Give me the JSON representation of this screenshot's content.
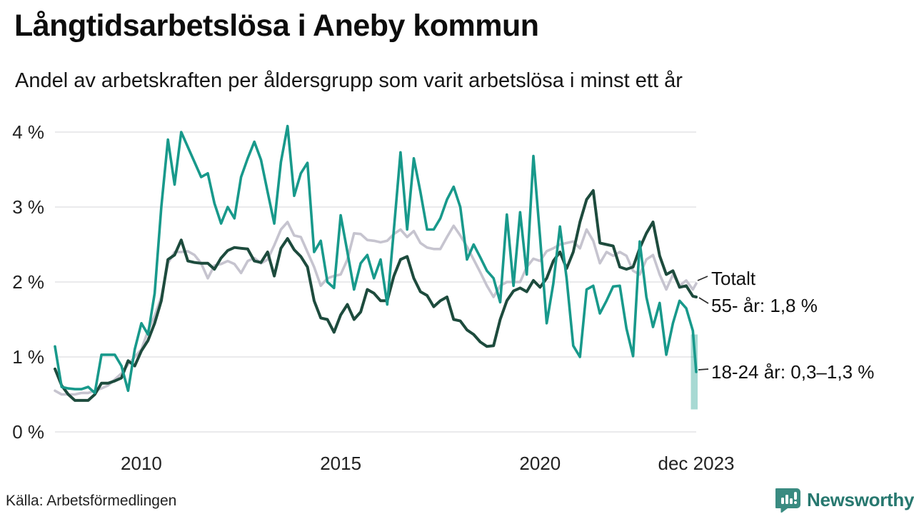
{
  "header": {
    "title": "Långtidsarbetslösa i Aneby kommun",
    "subtitle": "Andel av arbetskraften per åldersgrupp som varit arbetslösa i minst ett år"
  },
  "footer": {
    "source": "Källa: Arbetsförmedlingen",
    "brand": "Newsworthy"
  },
  "colors": {
    "teal_line": "#18998b",
    "dark_green_line": "#1d4b3d",
    "gray_line": "#c6c4cf",
    "gridline": "#e4e4e6",
    "range_band": "rgba(24,154,139,0.38)",
    "connector": "#2a2a2a",
    "brand_teal": "#3a8b81",
    "brand_text": "#27786f"
  },
  "chart_data": {
    "type": "line",
    "title": "Långtidsarbetslösa i Aneby kommun",
    "subtitle": "Andel av arbetskraften per åldersgrupp som varit arbetslösa i minst ett år",
    "unit": "%",
    "grid": "horizontal-only",
    "x_axis": {
      "ticks": [
        {
          "label": "2010",
          "month": 26
        },
        {
          "label": "2015",
          "month": 86
        },
        {
          "label": "2020",
          "month": 146
        },
        {
          "label": "dec 2023",
          "month": 193
        }
      ],
      "x_domain_months": 193,
      "sample_step_months": 2
    },
    "y_axis": {
      "tick_labels": [
        "0 %",
        "1 %",
        "2 %",
        "3 %",
        "4 %"
      ],
      "values": [
        0,
        1,
        2,
        3,
        4
      ],
      "ylim": [
        0,
        4.3
      ]
    },
    "series": [
      {
        "name": "Totalt",
        "end_label": "Totalt",
        "color": "#c6c4cf",
        "values": [
          0.55,
          0.5,
          0.5,
          0.5,
          0.52,
          0.52,
          0.55,
          0.58,
          0.62,
          0.7,
          0.78,
          0.9,
          1.0,
          1.1,
          1.35,
          1.55,
          1.8,
          2.25,
          2.4,
          2.4,
          2.41,
          2.36,
          2.25,
          2.05,
          2.22,
          2.24,
          2.28,
          2.24,
          2.12,
          2.28,
          2.32,
          2.25,
          2.3,
          2.49,
          2.7,
          2.8,
          2.62,
          2.6,
          2.4,
          2.2,
          1.95,
          2.05,
          2.08,
          2.1,
          2.3,
          2.65,
          2.64,
          2.56,
          2.55,
          2.53,
          2.55,
          2.64,
          2.7,
          2.6,
          2.68,
          2.52,
          2.46,
          2.44,
          2.44,
          2.6,
          2.75,
          2.62,
          2.47,
          2.3,
          2.13,
          1.95,
          1.8,
          1.95,
          2.0,
          2.0,
          2.0,
          2.2,
          2.31,
          2.28,
          2.41,
          2.45,
          2.5,
          2.52,
          2.54,
          2.45,
          2.7,
          2.55,
          2.25,
          2.4,
          2.35,
          2.4,
          2.35,
          2.15,
          2.1,
          2.3,
          2.36,
          2.1,
          1.9,
          2.1,
          1.95,
          2.02,
          1.9,
          1.98
        ]
      },
      {
        "name": "55- år",
        "end_label": "55- år: 1,8 %",
        "end_value": "1,8 %",
        "color": "#1d4b3d",
        "values": [
          0.84,
          0.62,
          0.5,
          0.42,
          0.42,
          0.42,
          0.5,
          0.65,
          0.65,
          0.68,
          0.72,
          0.95,
          0.88,
          1.08,
          1.22,
          1.45,
          1.75,
          2.3,
          2.36,
          2.56,
          2.28,
          2.26,
          2.25,
          2.25,
          2.17,
          2.32,
          2.42,
          2.46,
          2.45,
          2.44,
          2.28,
          2.26,
          2.4,
          2.08,
          2.45,
          2.58,
          2.43,
          2.34,
          2.2,
          1.75,
          1.52,
          1.5,
          1.33,
          1.56,
          1.7,
          1.5,
          1.6,
          1.9,
          1.85,
          1.75,
          1.75,
          2.08,
          2.3,
          2.34,
          2.05,
          1.87,
          1.82,
          1.67,
          1.75,
          1.8,
          1.5,
          1.48,
          1.36,
          1.3,
          1.2,
          1.14,
          1.15,
          1.5,
          1.75,
          1.88,
          1.92,
          1.87,
          2.02,
          1.93,
          2.05,
          2.28,
          2.4,
          2.18,
          2.4,
          2.8,
          3.1,
          3.22,
          2.52,
          2.5,
          2.48,
          2.2,
          2.17,
          2.2,
          2.45,
          2.65,
          2.8,
          2.35,
          2.1,
          2.15,
          1.93,
          1.95,
          1.81,
          1.8
        ]
      },
      {
        "name": "18-24 år",
        "end_label": "18-24 år: 0,3–1,3 %",
        "end_value_range": "0,3–1,3 %",
        "final_range": [
          0.3,
          1.3
        ],
        "color": "#18998b",
        "values": [
          1.14,
          0.6,
          0.58,
          0.57,
          0.57,
          0.6,
          0.52,
          1.03,
          1.03,
          1.03,
          0.88,
          0.55,
          1.1,
          1.45,
          1.3,
          1.85,
          3.0,
          3.9,
          3.3,
          4.0,
          3.8,
          3.6,
          3.4,
          3.45,
          3.05,
          2.78,
          3.0,
          2.85,
          3.4,
          3.65,
          3.87,
          3.63,
          3.2,
          2.78,
          3.6,
          4.08,
          3.15,
          3.45,
          3.59,
          2.4,
          2.55,
          2.0,
          1.92,
          2.89,
          2.4,
          1.9,
          2.25,
          2.36,
          2.05,
          2.3,
          1.7,
          2.7,
          3.73,
          2.7,
          3.65,
          3.2,
          2.7,
          2.7,
          2.85,
          3.1,
          3.27,
          3.0,
          2.3,
          2.5,
          2.33,
          2.15,
          2.05,
          1.73,
          2.9,
          1.95,
          2.93,
          2.1,
          3.68,
          2.6,
          1.45,
          1.98,
          2.74,
          2.05,
          1.15,
          1.0,
          1.9,
          1.95,
          1.58,
          1.75,
          1.94,
          1.95,
          1.38,
          1.01,
          2.54,
          1.8,
          1.4,
          1.72,
          1.03,
          1.45,
          1.75,
          1.65,
          1.35,
          0.8
        ]
      }
    ],
    "legend_position": "right-end-labels"
  }
}
